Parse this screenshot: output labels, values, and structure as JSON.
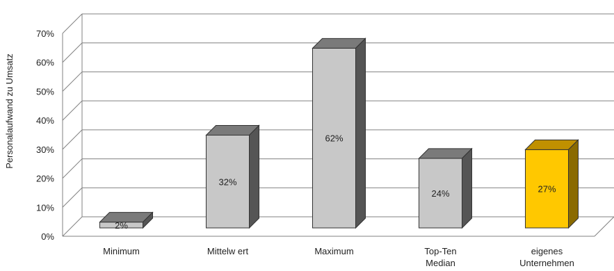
{
  "chart_data": {
    "type": "bar",
    "ylabel": "Personalaufwand zu Umsatz",
    "ylim": [
      0,
      70
    ],
    "y_ticks": [
      "0%",
      "10%",
      "20%",
      "30%",
      "40%",
      "50%",
      "60%",
      "70%"
    ],
    "grid": true,
    "categories": [
      [
        "Minimum"
      ],
      [
        "Mittelw ert"
      ],
      [
        "Maximum"
      ],
      [
        "Top-Ten",
        "Median"
      ],
      [
        "eigenes",
        "Unternehmen"
      ]
    ],
    "values": [
      2,
      32,
      62,
      24,
      27
    ],
    "value_labels": [
      "2%",
      "32%",
      "62%",
      "24%",
      "27%"
    ],
    "colors": {
      "bar_front": [
        "#c8c8c8",
        "#c8c8c8",
        "#c8c8c8",
        "#c8c8c8",
        "#ffc800"
      ],
      "bar_top": [
        "#7a7a7a",
        "#7a7a7a",
        "#7a7a7a",
        "#7a7a7a",
        "#c09000"
      ],
      "bar_side": [
        "#555555",
        "#555555",
        "#555555",
        "#555555",
        "#8a6a00"
      ],
      "grid": "#808080",
      "wall": "#ffffff"
    }
  }
}
